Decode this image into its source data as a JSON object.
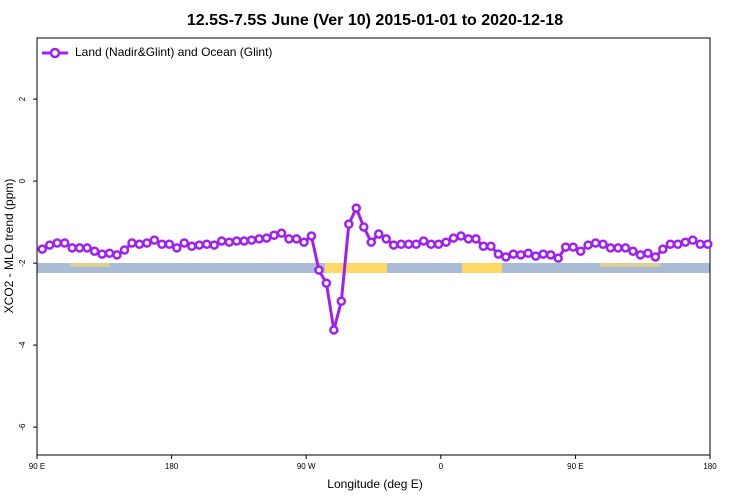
{
  "chart_data": {
    "type": "line",
    "title": "12.5S-7.5S June (Ver 10)   2015-01-01 to 2020-12-18",
    "x_label": "Longitude (deg E)",
    "y_label": "XCO2 - MLO trend (ppm)",
    "x": [
      93.5,
      98.5,
      103.5,
      108.5,
      113.5,
      118.5,
      123.5,
      128.5,
      133.5,
      138.5,
      143.5,
      148.5,
      153.5,
      158.5,
      163.5,
      168.5,
      173.5,
      178.5,
      183.5,
      188.5,
      193.5,
      198.5,
      203.5,
      208.5,
      213.5,
      218.5,
      223.5,
      228.5,
      233.5,
      238.5,
      243.5,
      248.5,
      253.5,
      258.5,
      263.5,
      268.5,
      273.5,
      278.5,
      283.5,
      288.5,
      293.5,
      298.5,
      303.5,
      308.5,
      313.5,
      318.5,
      323.5,
      328.5,
      333.5,
      338.5,
      343.5,
      348.5,
      353.5,
      358.5,
      363.5,
      368.5,
      373.5,
      378.5,
      383.5,
      388.5,
      393.5,
      398.5,
      403.5,
      408.5,
      413.5,
      418.5,
      423.5,
      428.5,
      433.5,
      438.5,
      443.5,
      448.5,
      453.5,
      458.5,
      463.5,
      468.5,
      473.5,
      478.5,
      483.5,
      488.5,
      493.5,
      498.5,
      503.5,
      508.5,
      513.5,
      518.5,
      523.5,
      528.5,
      533.5,
      538.5
    ],
    "series": [
      {
        "name": "Land (Nadir&Glint) and Ocean (Glint)",
        "color": "#a020f0",
        "values": [
          -1.66,
          -1.56,
          -1.51,
          -1.51,
          -1.63,
          -1.63,
          -1.63,
          -1.71,
          -1.78,
          -1.76,
          -1.8,
          -1.68,
          -1.51,
          -1.54,
          -1.51,
          -1.44,
          -1.54,
          -1.54,
          -1.63,
          -1.51,
          -1.59,
          -1.56,
          -1.54,
          -1.56,
          -1.46,
          -1.49,
          -1.46,
          -1.46,
          -1.44,
          -1.41,
          -1.39,
          -1.32,
          -1.27,
          -1.41,
          -1.41,
          -1.49,
          -1.34,
          -2.17,
          -2.49,
          -3.63,
          -2.93,
          -1.05,
          -0.66,
          -1.12,
          -1.49,
          -1.29,
          -1.41,
          -1.56,
          -1.54,
          -1.54,
          -1.54,
          -1.46,
          -1.54,
          -1.54,
          -1.49,
          -1.39,
          -1.34,
          -1.41,
          -1.41,
          -1.59,
          -1.59,
          -1.78,
          -1.85,
          -1.78,
          -1.8,
          -1.76,
          -1.83,
          -1.78,
          -1.8,
          -1.88,
          -1.61,
          -1.61,
          -1.71,
          -1.56,
          -1.51,
          -1.54,
          -1.63,
          -1.63,
          -1.63,
          -1.71,
          -1.8,
          -1.76,
          -1.85,
          -1.66,
          -1.54,
          -1.54,
          -1.49,
          -1.44,
          -1.54,
          -1.54
        ]
      }
    ],
    "xlim": [
      90,
      540
    ],
    "xticks": [
      {
        "value": 90,
        "label": "90 E"
      },
      {
        "value": 180,
        "label": "180"
      },
      {
        "value": 270,
        "label": "90 W"
      },
      {
        "value": 360,
        "label": "0"
      },
      {
        "value": 450,
        "label": "90 E"
      },
      {
        "value": 540,
        "label": "180"
      }
    ],
    "ylim": [
      -6.68,
      3.49
    ],
    "yticks": [
      -6,
      -4,
      -2,
      0,
      2
    ],
    "legend": "top-left"
  }
}
